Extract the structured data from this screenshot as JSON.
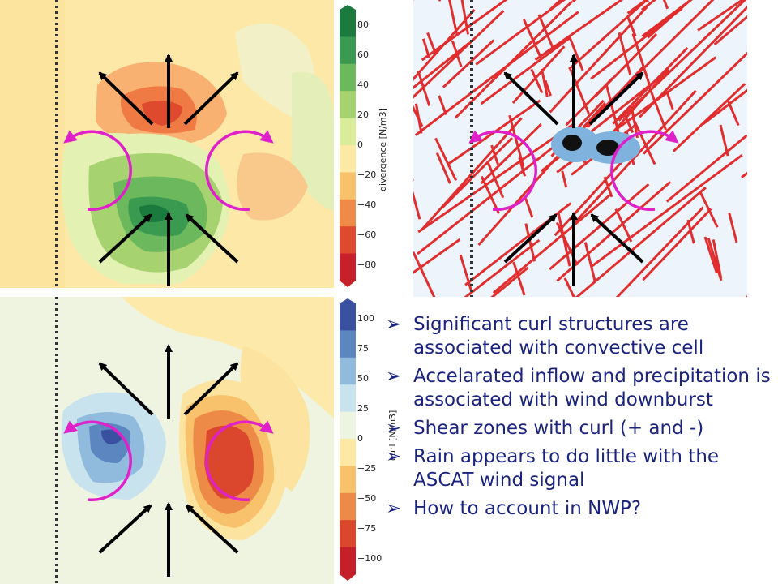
{
  "divergence_colorbar": {
    "label": "divergence [N/m3]",
    "ticks": [
      "80",
      "60",
      "40",
      "20",
      "0",
      "−20",
      "−40",
      "−60",
      "−80"
    ],
    "colors": [
      "#1b7a3e",
      "#3a9a4f",
      "#6cb85c",
      "#a6d270",
      "#d8ec9a",
      "#fbe9a4",
      "#f7c26b",
      "#ef8a47",
      "#de4a2e",
      "#c6202b"
    ]
  },
  "curl_colorbar": {
    "label": "curl [N/m3]",
    "ticks": [
      "100",
      "75",
      "50",
      "25",
      "0",
      "−25",
      "−50",
      "−75",
      "−100"
    ],
    "colors": [
      "#3951a0",
      "#5b86c0",
      "#91bbdc",
      "#c8e2ee",
      "#edf4df",
      "#fde9a4",
      "#f7c26b",
      "#ee8a47",
      "#db472d",
      "#c5202a"
    ]
  },
  "bullets": [
    "Significant curl structures are associated with convective cell",
    "Accelarated inflow and precipitation is associated with wind downburst",
    "Shear zones with curl (+ and -)",
    "Rain appears to do little with the ASCAT wind signal",
    "How to account in NWP?"
  ],
  "bullet_marker": "➢",
  "colors": {
    "arrow": "#000000",
    "circulation": "#e020c8",
    "text": "#1a237e"
  }
}
